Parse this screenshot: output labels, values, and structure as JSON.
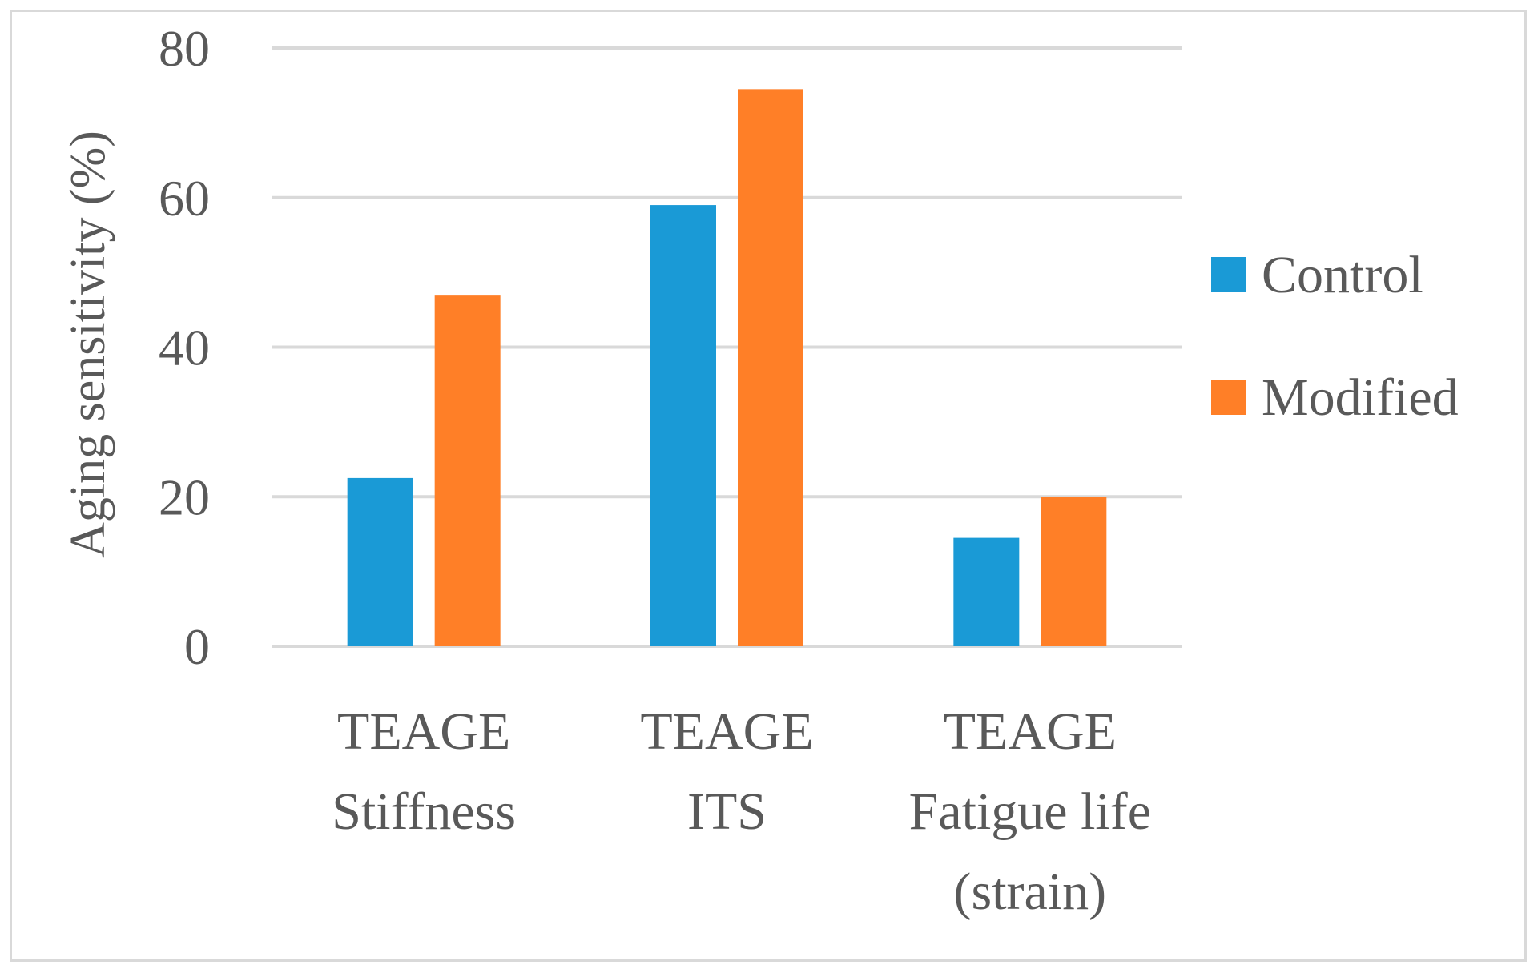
{
  "chart_data": {
    "type": "bar",
    "title": "",
    "xlabel": "",
    "ylabel": "Aging sensitivity (%)",
    "ylim": [
      0,
      80
    ],
    "yticks": [
      0,
      20,
      40,
      60,
      80
    ],
    "grid": true,
    "legend_position": "right",
    "categories": [
      [
        "TEAGE",
        "Stiffness"
      ],
      [
        "TEAGE",
        "ITS"
      ],
      [
        "TEAGE",
        "Fatigue life",
        "(strain)"
      ]
    ],
    "series": [
      {
        "name": "Control",
        "color": "#1a9ad6",
        "values": [
          22.5,
          59,
          14.5
        ]
      },
      {
        "name": "Modified",
        "color": "#ff7f27",
        "values": [
          47,
          74.5,
          20
        ]
      }
    ]
  }
}
